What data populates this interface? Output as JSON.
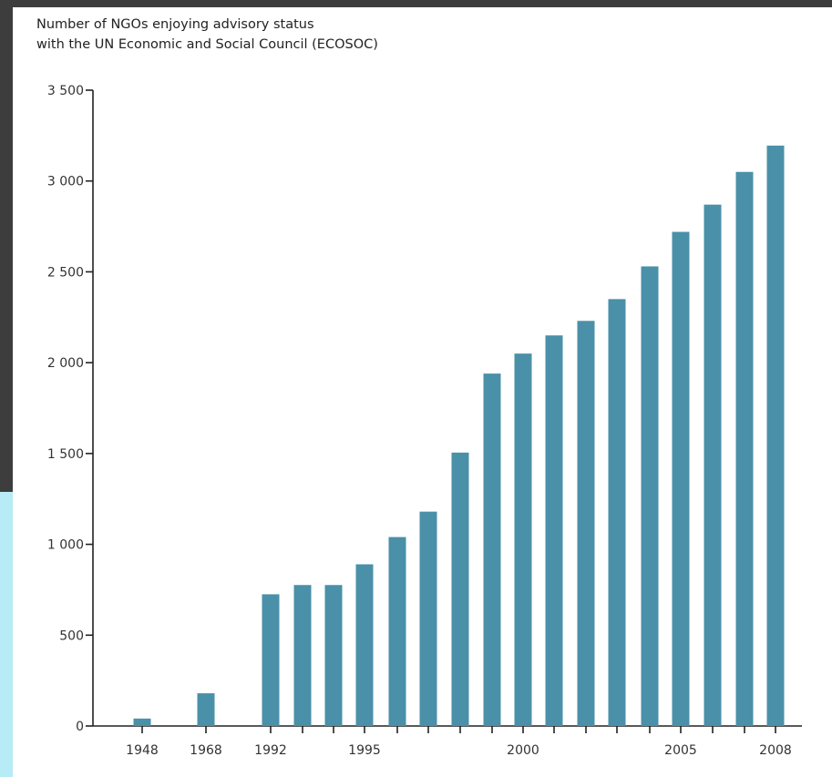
{
  "chart_data": {
    "type": "bar",
    "title_lines": [
      "Number of NGOs enjoying advisory status",
      "with the UN Economic and Social Council (ECOSOC)"
    ],
    "xlabel": "",
    "ylabel": "",
    "ylim": [
      0,
      3500
    ],
    "y_ticks": [
      0,
      500,
      1000,
      1500,
      2000,
      2500,
      3000,
      3500
    ],
    "y_tick_labels": [
      "0",
      "500",
      "1 000",
      "1 500",
      "2 000",
      "2 500",
      "3 000",
      "3 500"
    ],
    "categories": [
      "1948",
      "1968",
      "1992",
      "1993",
      "1994",
      "1995",
      "1996",
      "1997",
      "1998",
      "1999",
      "2000",
      "2001",
      "2002",
      "2003",
      "2004",
      "2005",
      "2006",
      "2007",
      "2008"
    ],
    "x_tick_labels": [
      "1948",
      "1968",
      "1992",
      "",
      "",
      "1995",
      "",
      "",
      "",
      "",
      "2000",
      "",
      "",
      "",
      "",
      "2005",
      "",
      "",
      "2008"
    ],
    "values": [
      41,
      180,
      725,
      776,
      776,
      890,
      1040,
      1180,
      1505,
      1940,
      2050,
      2150,
      2230,
      2350,
      2530,
      2720,
      2870,
      3050,
      3195
    ],
    "bar_color": "#4a90a8",
    "grid": false
  }
}
